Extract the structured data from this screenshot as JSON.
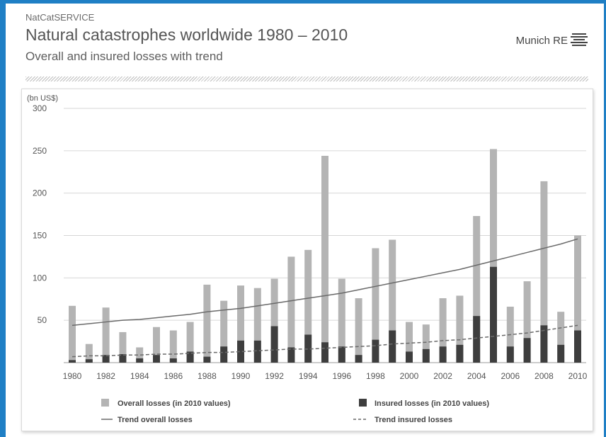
{
  "header": {
    "service": "NatCatSERVICE",
    "title": "Natural catastrophes worldwide 1980 – 2010",
    "subtitle": "Overall and insured losses with trend"
  },
  "logo": {
    "text": "Munich RE",
    "icon": "munich-re-logo-icon"
  },
  "colors": {
    "overall": "#b4b4b4",
    "insured": "#3e3e3e",
    "trend_overall": "#6a6a6a",
    "trend_insured": "#6a6a6a",
    "grid": "#d6d6d6"
  },
  "chart_data": {
    "type": "bar",
    "ylabel": "(bn US$)",
    "ylim": [
      0,
      300
    ],
    "yticks": [
      50,
      100,
      150,
      200,
      250,
      300
    ],
    "x": [
      1980,
      1981,
      1982,
      1983,
      1984,
      1985,
      1986,
      1987,
      1988,
      1989,
      1990,
      1991,
      1992,
      1993,
      1994,
      1995,
      1996,
      1997,
      1998,
      1999,
      2000,
      2001,
      2002,
      2003,
      2004,
      2005,
      2006,
      2007,
      2008,
      2009,
      2010
    ],
    "xtick_labels": [
      "1980",
      "1982",
      "1984",
      "1986",
      "1988",
      "1990",
      "1992",
      "1994",
      "1996",
      "1998",
      "2000",
      "2002",
      "2004",
      "2006",
      "2008",
      "2010"
    ],
    "series": [
      {
        "name": "Overall losses (in 2010 values)",
        "type": "bar",
        "values": [
          67,
          22,
          65,
          36,
          18,
          42,
          38,
          48,
          92,
          73,
          91,
          88,
          99,
          125,
          133,
          244,
          99,
          76,
          135,
          145,
          48,
          45,
          76,
          79,
          173,
          252,
          66,
          96,
          214,
          60,
          150
        ]
      },
      {
        "name": "Insured losses (in 2010 values)",
        "type": "bar",
        "values": [
          3,
          4,
          9,
          10,
          5,
          9,
          5,
          13,
          7,
          19,
          26,
          26,
          43,
          18,
          33,
          24,
          19,
          9,
          27,
          38,
          13,
          16,
          19,
          21,
          55,
          113,
          19,
          29,
          44,
          21,
          38
        ]
      },
      {
        "name": "Trend overall losses",
        "type": "line",
        "style": "solid",
        "values": [
          44,
          46,
          48,
          50,
          51,
          53,
          55,
          57,
          60,
          62,
          64,
          67,
          70,
          73,
          76,
          79,
          82,
          86,
          90,
          94,
          98,
          102,
          106,
          110,
          115,
          120,
          125,
          130,
          135,
          140,
          146
        ]
      },
      {
        "name": "Trend insured losses",
        "type": "line",
        "style": "dashed",
        "values": [
          7,
          8,
          8,
          9,
          9,
          10,
          10,
          11,
          12,
          12,
          13,
          14,
          15,
          16,
          16,
          17,
          18,
          19,
          20,
          22,
          23,
          24,
          26,
          27,
          29,
          31,
          33,
          35,
          38,
          41,
          44
        ]
      }
    ],
    "legend": {
      "position": "bottom"
    }
  }
}
